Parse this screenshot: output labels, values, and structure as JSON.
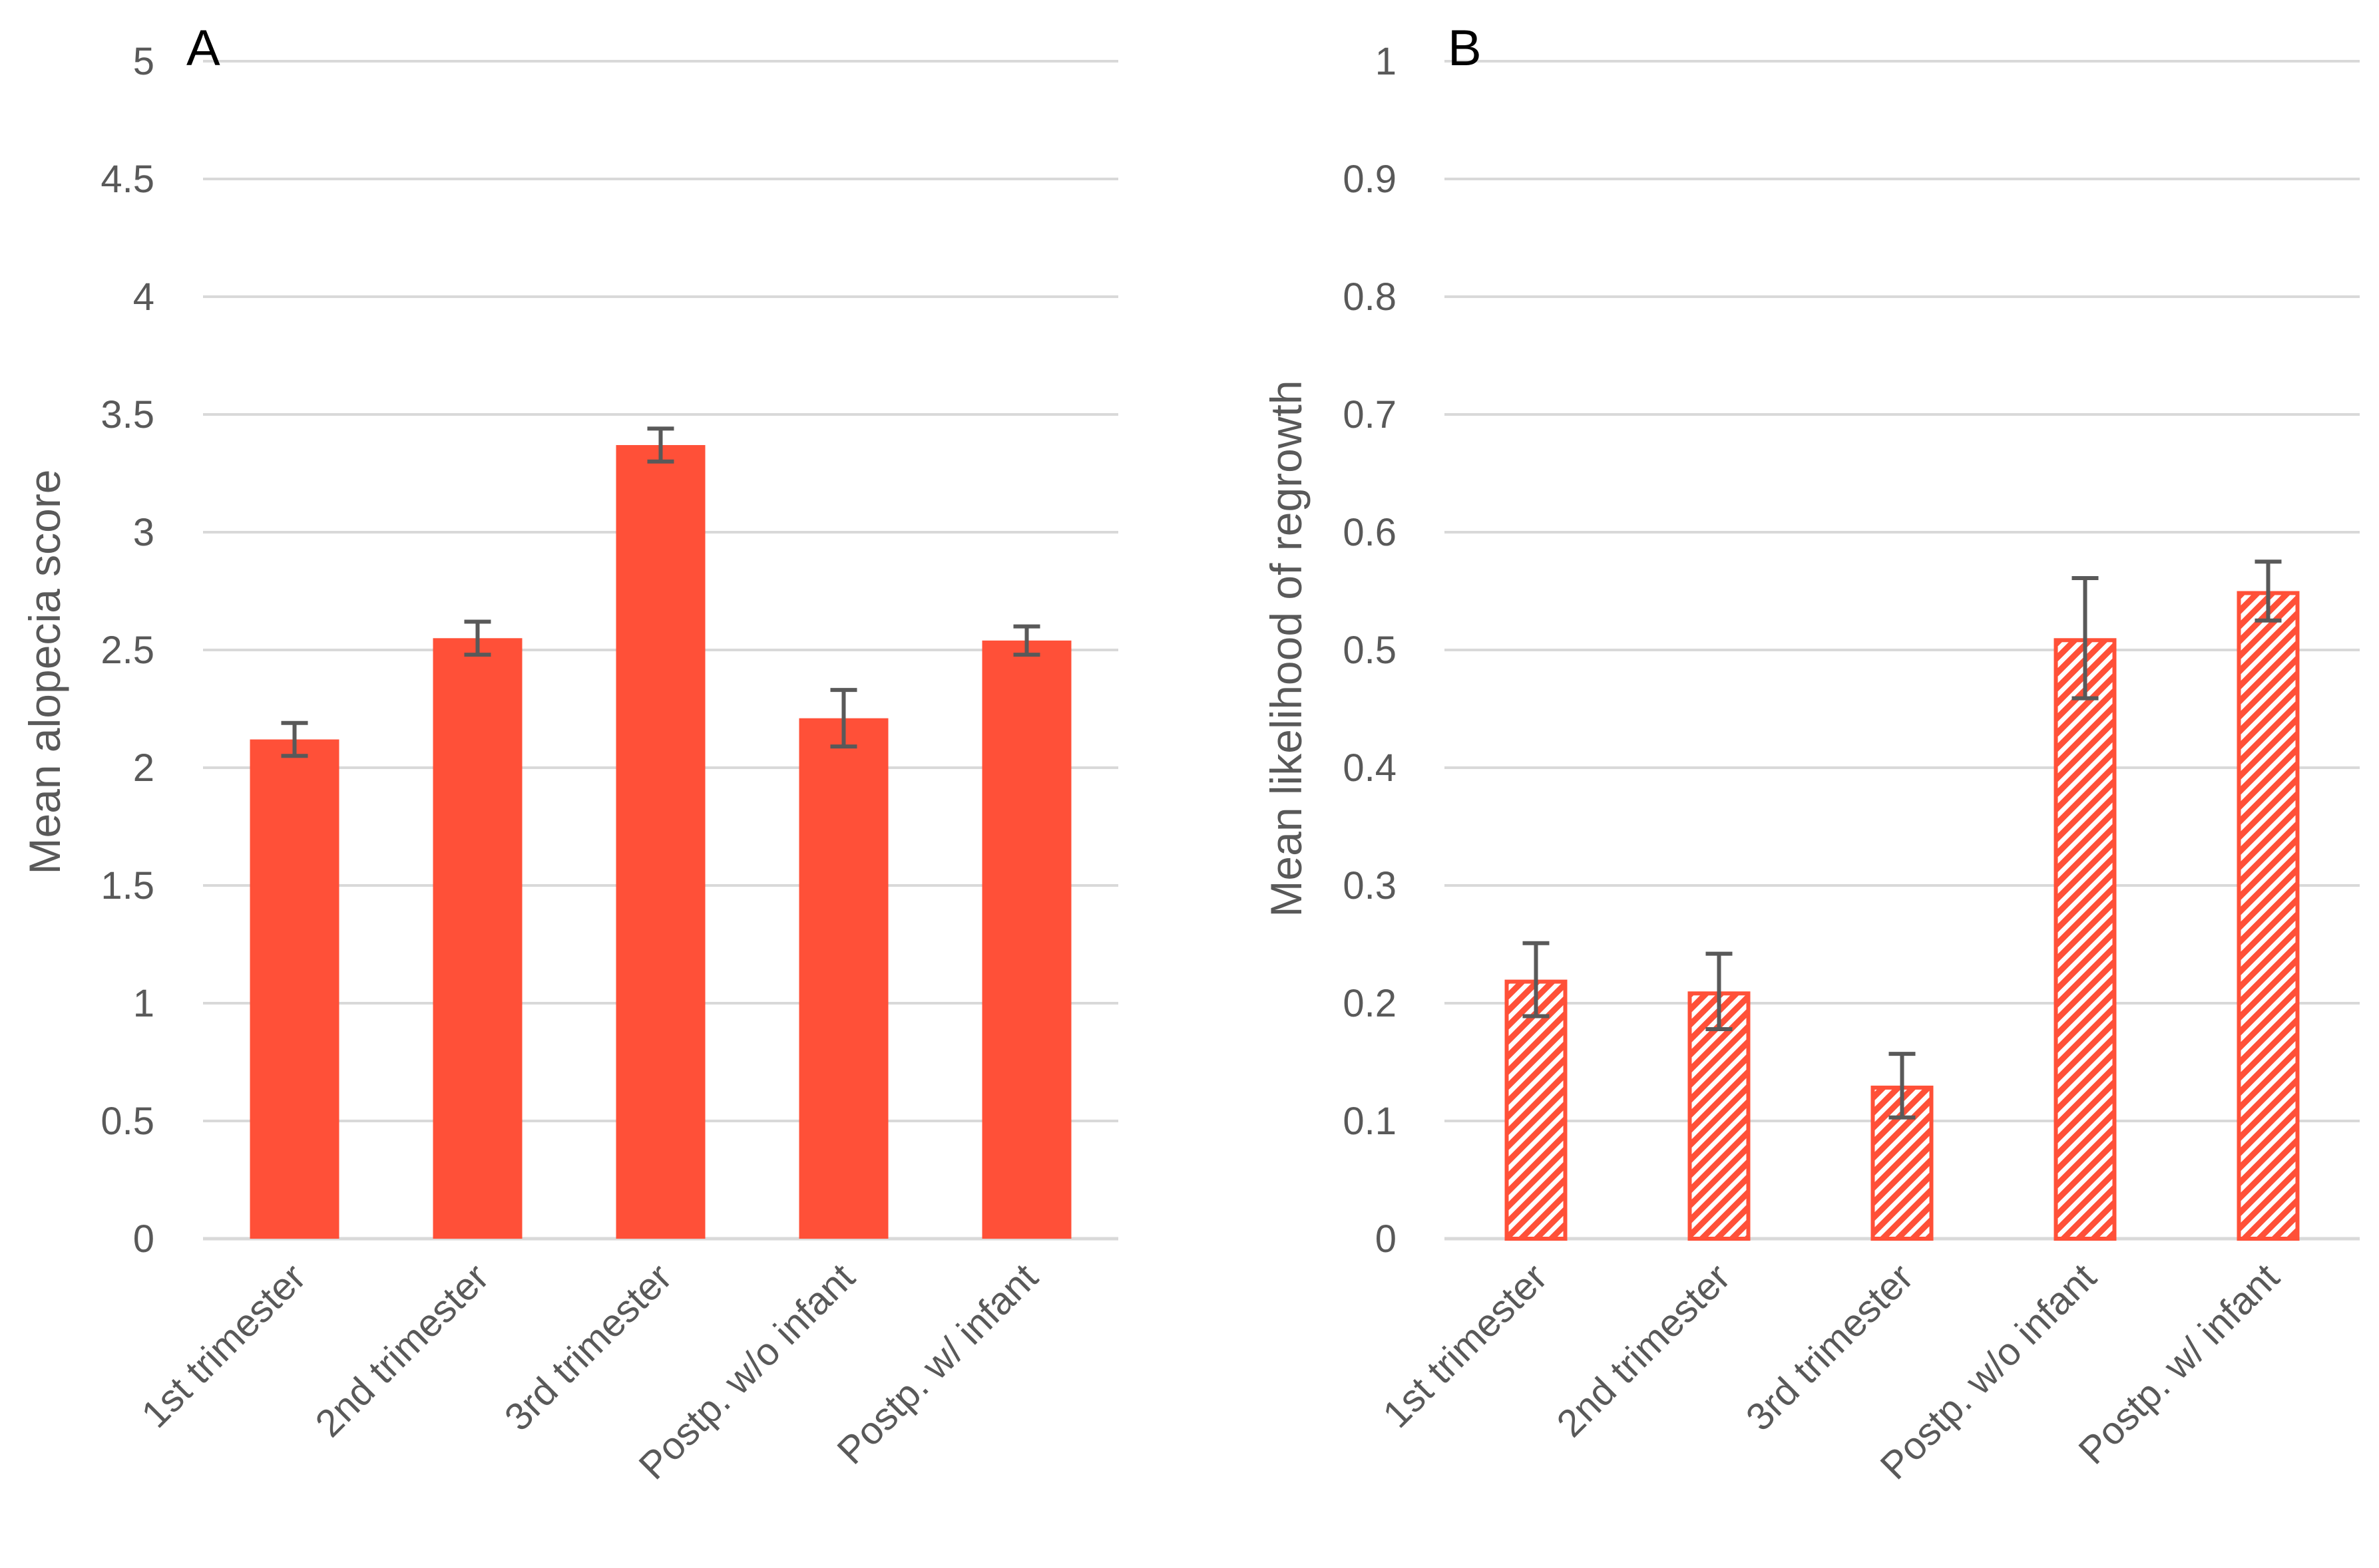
{
  "chart_data": [
    {
      "type": "bar",
      "panel_label": "A",
      "title": "",
      "xlabel": "",
      "ylabel": "Mean alopecia score",
      "categories": [
        "1st trimester",
        "2nd trimester",
        "3rd trimester",
        "Postp. w/o infant",
        "Postp. w/ infant"
      ],
      "values": [
        2.12,
        2.55,
        3.37,
        2.21,
        2.54
      ],
      "errors": [
        0.07,
        0.07,
        0.07,
        0.12,
        0.06
      ],
      "ylim": [
        0,
        5
      ],
      "yticks": [
        "0",
        "0.5",
        "1",
        "1.5",
        "2",
        "2.5",
        "3",
        "3.5",
        "4",
        "4.5",
        "5"
      ],
      "fill": "solid",
      "grid": true,
      "color": "#ff5038",
      "error_color": "#595959"
    },
    {
      "type": "bar",
      "panel_label": "B",
      "title": "",
      "xlabel": "",
      "ylabel": "Mean likelihood of regrowth",
      "categories": [
        "1st trimester",
        "2nd trimester",
        "3rd trimester",
        "Postp. w/o infant",
        "Postp. w/ infant"
      ],
      "values": [
        0.22,
        0.21,
        0.13,
        0.51,
        0.55
      ],
      "errors": [
        0.031,
        0.032,
        0.027,
        0.051,
        0.025
      ],
      "ylim": [
        0,
        1
      ],
      "yticks": [
        "0",
        "0.1",
        "0.2",
        "0.3",
        "0.4",
        "0.5",
        "0.6",
        "0.7",
        "0.8",
        "0.9",
        "1"
      ],
      "fill": "hatched",
      "grid": true,
      "color": "#ff5038",
      "error_color": "#595959"
    }
  ]
}
